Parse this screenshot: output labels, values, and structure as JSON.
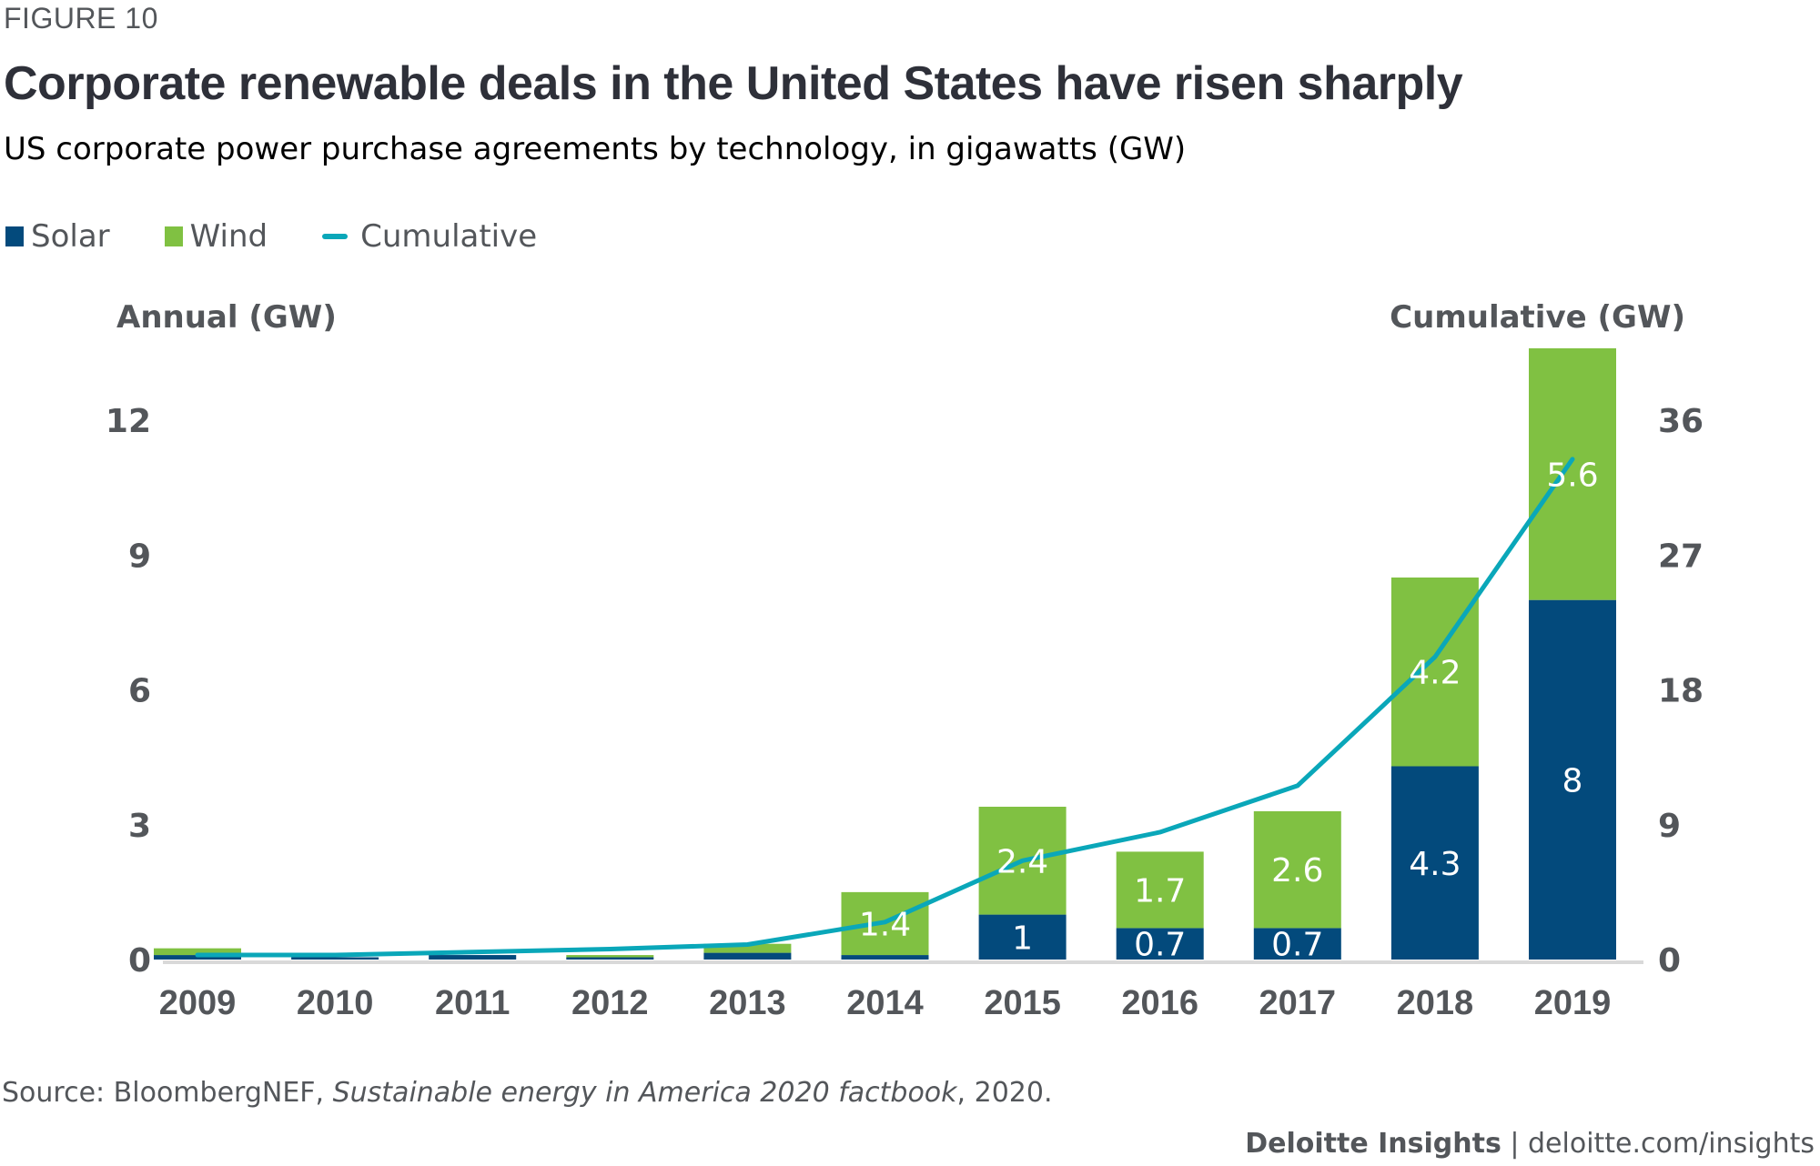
{
  "figure_label": "FIGURE 10",
  "title": "Corporate renewable deals in the United States have risen sharply",
  "subtitle": "US corporate power purchase agreements by technology, in gigawatts (GW)",
  "legend": [
    {
      "label": "Solar",
      "type": "bar",
      "color": "#034a7c"
    },
    {
      "label": "Wind",
      "type": "bar",
      "color": "#80c142"
    },
    {
      "label": "Cumulative",
      "type": "line",
      "color": "#0aa7b9"
    }
  ],
  "source": {
    "prefix": "Source: BloombergNEF, ",
    "italic": "Sustainable energy in America 2020 factbook",
    "suffix": ", 2020."
  },
  "footer": {
    "brand": "Deloitte Insights",
    "separator": " | ",
    "url": "deloitte.com/insights"
  },
  "chart_data": {
    "type": "bar",
    "stacked": true,
    "title": "Corporate renewable deals in the United States have risen sharply",
    "subtitle": "US corporate power purchase agreements by technology, in gigawatts (GW)",
    "categories": [
      "2009",
      "2010",
      "2011",
      "2012",
      "2013",
      "2014",
      "2015",
      "2016",
      "2017",
      "2018",
      "2019"
    ],
    "series": [
      {
        "name": "Solar",
        "axis": "left",
        "color": "#034a7c",
        "values": [
          0.1,
          0.05,
          0.1,
          0.05,
          0.15,
          0.1,
          1,
          0.7,
          0.7,
          4.3,
          8
        ],
        "labels": [
          "",
          "",
          "",
          "",
          "",
          "",
          "1",
          "0.7",
          "0.7",
          "4.3",
          "8"
        ]
      },
      {
        "name": "Wind",
        "axis": "left",
        "color": "#80c142",
        "values": [
          0.15,
          0,
          0,
          0.05,
          0.2,
          1.4,
          2.4,
          1.7,
          2.6,
          4.2,
          5.6
        ],
        "labels": [
          "",
          "",
          "",
          "",
          "",
          "1.4",
          "2.4",
          "1.7",
          "2.6",
          "4.2",
          "5.6"
        ]
      },
      {
        "name": "Cumulative",
        "type": "line",
        "axis": "right",
        "color": "#0aa7b9",
        "values": [
          0.3,
          0.3,
          0.5,
          0.7,
          1.0,
          2.5,
          6.6,
          8.5,
          11.6,
          20.2,
          33.4
        ]
      }
    ],
    "ylabel": "Annual (GW)",
    "ylim": [
      0,
      12
    ],
    "yticks": [
      "0",
      "3",
      "6",
      "9",
      "12"
    ],
    "y2label": "Cumulative (GW)",
    "y2lim": [
      0,
      36
    ],
    "y2ticks": [
      "0",
      "9",
      "18",
      "27",
      "36"
    ],
    "xlabel": "",
    "grid": false,
    "legend_position": "top-left"
  }
}
